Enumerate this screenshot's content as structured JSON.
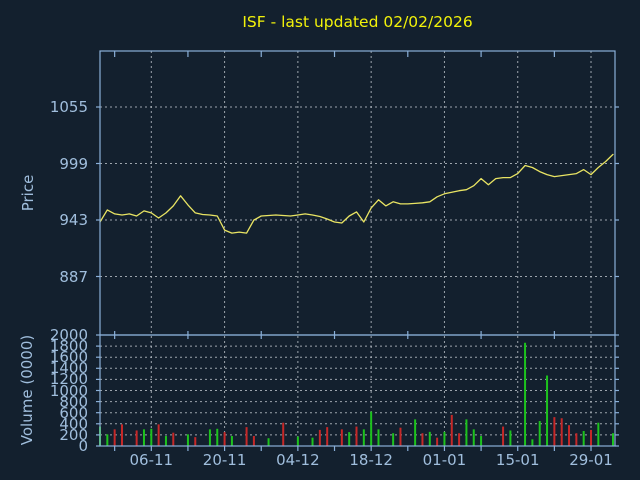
{
  "figure": {
    "title": "ISF - last updated 02/02/2026"
  },
  "colors": {
    "background": "#13202e",
    "axis": "#8ab0d9",
    "grid": "#b6bdc4",
    "tick_text": "#a0bedd",
    "title": "#f2f20a",
    "price_line": "#e9e463",
    "volume_up": "#1dc31d",
    "volume_down": "#c62828"
  },
  "chart_data": [
    {
      "type": "line",
      "name": "price",
      "title": "ISF - last updated 02/02/2026",
      "ylabel": "Price",
      "yticks": [
        887,
        943,
        999,
        1055
      ],
      "ylim": [
        829,
        1110
      ],
      "grid": true,
      "x_ticklabels": [
        "06-11",
        "20-11",
        "04-12",
        "18-12",
        "01-01",
        "15-01",
        "29-01"
      ],
      "x_tick_day_indices": [
        7,
        17,
        27,
        37,
        47,
        57,
        67
      ],
      "n_days": 71,
      "values": [
        941,
        953,
        949,
        948,
        949,
        947,
        952,
        950,
        945,
        950,
        957,
        967,
        958,
        950,
        948.5,
        948,
        947,
        933,
        930,
        931,
        930,
        943,
        947,
        947.5,
        948,
        947.5,
        947,
        948,
        949,
        948,
        946.5,
        944,
        941,
        940,
        947,
        951,
        941,
        955,
        963,
        957,
        961,
        959,
        959,
        959.5,
        960,
        961,
        966,
        969,
        970.5,
        972,
        973,
        977,
        984,
        978,
        984,
        985,
        985,
        989,
        997,
        995,
        991,
        988,
        986,
        987,
        988,
        989,
        993,
        988,
        995,
        1001,
        1008
      ]
    },
    {
      "type": "bar",
      "name": "volume",
      "ylabel": "Volume (0000)",
      "yticks": [
        0,
        200,
        400,
        600,
        800,
        1000,
        1200,
        1400,
        1600,
        1800,
        2000
      ],
      "ylim": [
        0,
        2000
      ],
      "grid": true,
      "values": [
        350,
        210,
        300,
        390,
        0,
        280,
        300,
        310,
        390,
        180,
        240,
        0,
        210,
        160,
        0,
        300,
        310,
        250,
        180,
        0,
        340,
        180,
        0,
        140,
        0,
        420,
        0,
        170,
        0,
        150,
        290,
        340,
        0,
        300,
        250,
        350,
        300,
        620,
        300,
        0,
        230,
        330,
        0,
        480,
        230,
        255,
        150,
        255,
        560,
        230,
        480,
        300,
        180,
        0,
        0,
        350,
        280,
        0,
        1860,
        120,
        450,
        1270,
        520,
        500,
        375,
        230,
        270,
        290,
        420,
        0,
        230
      ],
      "colors": [
        "g",
        "g",
        "r",
        "r",
        "g",
        "r",
        "g",
        "g",
        "r",
        "g",
        "r",
        "g",
        "g",
        "r",
        "g",
        "g",
        "g",
        "r",
        "g",
        "g",
        "r",
        "r",
        "g",
        "g",
        "g",
        "r",
        "g",
        "g",
        "g",
        "g",
        "r",
        "r",
        "g",
        "r",
        "g",
        "r",
        "g",
        "g",
        "g",
        "g",
        "g",
        "r",
        "g",
        "g",
        "r",
        "g",
        "r",
        "g",
        "r",
        "r",
        "g",
        "g",
        "g",
        "g",
        "g",
        "r",
        "g",
        "g",
        "g",
        "g",
        "g",
        "g",
        "r",
        "r",
        "r",
        "r",
        "g",
        "r",
        "g",
        "g",
        "g"
      ]
    }
  ]
}
